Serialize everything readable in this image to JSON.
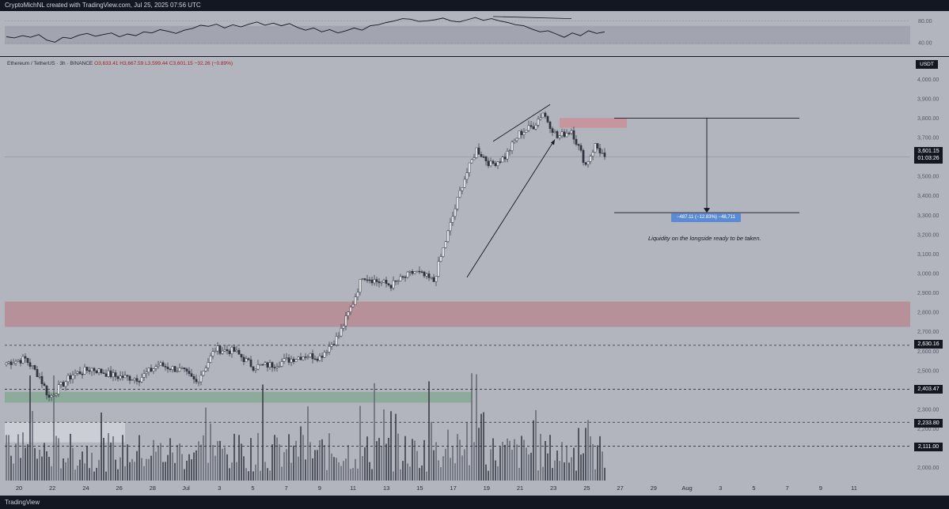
{
  "header": {
    "text": "CryptoMichNL created with TradingView.com, Jul 25, 2025 07:56 UTC"
  },
  "footer": {
    "brand": "TradingView"
  },
  "symbol": {
    "name": "Ethereum / TetherUS · 3h · BINANCE",
    "open": "O3,633.41",
    "high": "H3,667.59",
    "low": "L3,599.44",
    "close": "C3,601.15",
    "change": "−32.26 (−0.89%)"
  },
  "currency_tag": "USDT",
  "last_price": {
    "price": "3,601.15",
    "countdown": "01:03:26"
  },
  "level_tags": [
    "2,630.16",
    "2,403.47",
    "2,233.80",
    "2,111.00"
  ],
  "measure": {
    "label": "−487.11 (−12.83%) −48,711"
  },
  "annotation": "Liquidity on the longside ready to be taken.",
  "colors": {
    "background": "#b2b5be",
    "supply_zone": "#b8868e",
    "demand_zone": "#86a994",
    "candle": "#2f3540",
    "measure_box": "#5b8bd4"
  },
  "chart_data": [
    {
      "type": "line",
      "panel": "oscillator",
      "y_ticks": [
        "80.00",
        "40.00"
      ],
      "ylim": [
        20,
        95
      ],
      "band": [
        37,
        71
      ],
      "values": [
        51,
        49,
        53,
        50,
        55,
        45,
        41,
        50,
        48,
        54,
        57,
        52,
        55,
        58,
        51,
        56,
        53,
        60,
        58,
        64,
        61,
        57,
        63,
        66,
        72,
        70,
        74,
        67,
        73,
        69,
        74,
        78,
        72,
        76,
        71,
        75,
        68,
        63,
        67,
        60,
        64,
        58,
        62,
        67,
        63,
        71,
        73,
        77,
        80,
        84,
        83,
        79,
        80,
        82,
        85,
        80,
        78,
        82,
        86,
        81,
        84,
        80,
        77,
        73,
        71,
        65,
        60,
        62,
        56,
        50,
        58,
        53,
        62,
        57,
        60
      ]
    },
    {
      "type": "bar",
      "panel": "price",
      "title": "Ethereum / TetherUS · 3h · BINANCE",
      "y_ticks": [
        "4,000.00",
        "3,900.00",
        "3,800.00",
        "3,700.00",
        "3,600.00",
        "3,500.00",
        "3,400.00",
        "3,300.00",
        "3,200.00",
        "3,100.00",
        "3,000.00",
        "2,900.00",
        "2,800.00",
        "2,700.00",
        "2,600.00",
        "2,500.00",
        "2,400.00",
        "2,300.00",
        "2,200.00",
        "2,100.00",
        "2,000.00"
      ],
      "x_ticks": [
        "20",
        "22",
        "24",
        "26",
        "28",
        "Jul",
        "3",
        "5",
        "7",
        "9",
        "11",
        "13",
        "15",
        "17",
        "19",
        "21",
        "23",
        "25",
        "27",
        "29",
        "Aug",
        "3",
        "5",
        "7",
        "9",
        "11"
      ],
      "ylim": [
        1950,
        4050
      ],
      "close_keypoints": [
        [
          0,
          2540
        ],
        [
          8,
          2560
        ],
        [
          14,
          2470
        ],
        [
          18,
          2360
        ],
        [
          22,
          2410
        ],
        [
          28,
          2480
        ],
        [
          36,
          2510
        ],
        [
          46,
          2470
        ],
        [
          56,
          2460
        ],
        [
          64,
          2530
        ],
        [
          74,
          2500
        ],
        [
          80,
          2440
        ],
        [
          88,
          2610
        ],
        [
          96,
          2600
        ],
        [
          104,
          2520
        ],
        [
          112,
          2530
        ],
        [
          120,
          2560
        ],
        [
          126,
          2580
        ],
        [
          132,
          2570
        ],
        [
          140,
          2680
        ],
        [
          146,
          2850
        ],
        [
          150,
          2990
        ],
        [
          156,
          2960
        ],
        [
          162,
          2940
        ],
        [
          172,
          3010
        ],
        [
          180,
          2960
        ],
        [
          186,
          3210
        ],
        [
          192,
          3460
        ],
        [
          198,
          3640
        ],
        [
          204,
          3560
        ],
        [
          210,
          3600
        ],
        [
          216,
          3720
        ],
        [
          222,
          3760
        ],
        [
          226,
          3830
        ],
        [
          232,
          3700
        ],
        [
          238,
          3740
        ],
        [
          244,
          3560
        ],
        [
          248,
          3660
        ],
        [
          252,
          3601
        ]
      ],
      "volume_ylim": [
        0,
        100
      ],
      "horizontal_levels": [
        2630.16,
        2403.47,
        2233.8,
        2111.0
      ],
      "zones": [
        {
          "name": "supply-zone-lower",
          "y_range": [
            2725,
            2855
          ],
          "from": 0
        },
        {
          "name": "supply-zone-upper",
          "y_range": [
            3750,
            3800
          ],
          "from": 233
        },
        {
          "name": "demand-zone",
          "y_range": [
            2335,
            2390
          ],
          "from": 0
        },
        {
          "name": "light-zone",
          "y_range": [
            2130,
            2235
          ],
          "from": 0
        }
      ],
      "measure": {
        "from": 3800,
        "to": 3313
      }
    }
  ]
}
